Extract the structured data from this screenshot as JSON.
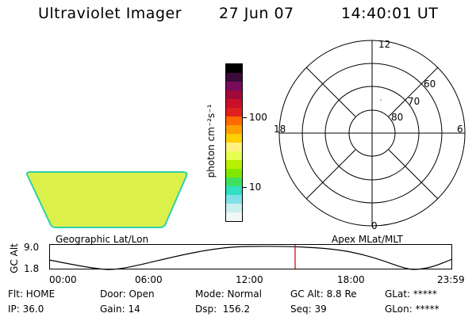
{
  "header": {
    "instrument": "Ultraviolet Imager",
    "date": "27 Jun 07",
    "time": "14:40:01 UT"
  },
  "colorbar": {
    "unit_label": "photon cm⁻²s⁻¹",
    "tick_100": "100",
    "tick_10": "10",
    "colors": [
      "#000000",
      "#3a0a3a",
      "#7a0a5a",
      "#a00a3a",
      "#c8102a",
      "#e02020",
      "#ff6a00",
      "#ffa000",
      "#ffd000",
      "#fff080",
      "#e6ff50",
      "#b8f000",
      "#80e800",
      "#40e060",
      "#30e0c0",
      "#80e0e8",
      "#c8f0f0",
      "#f0f8f8"
    ]
  },
  "geo_panel": {
    "label": "Geographic Lat/Lon",
    "fill_color": "#dcf04a"
  },
  "polar_plot": {
    "label": "Apex MLat/MLT",
    "mlt_top": "12",
    "mlt_left": "18",
    "mlt_right": "6",
    "mlt_bottom": "0",
    "lat_60": "60",
    "lat_70": "70",
    "lat_80": "80"
  },
  "altitude_plot": {
    "ylabel": "GC Alt",
    "y_top": "9.0",
    "y_bottom": "1.8",
    "x_ticks": [
      "00:00",
      "06:00",
      "12:00",
      "18:00",
      "23:59"
    ],
    "marker_color": "#cc0000"
  },
  "status": {
    "flt": "Flt: HOME",
    "ip": "IP: 36.0",
    "door": "Door: Open",
    "gain": "Gain: 14",
    "mode": "Mode: Normal",
    "dsp": "Dsp:  156.2",
    "gc_alt": "GC Alt: 8.8 Re",
    "seq": "Seq: 39",
    "glat": "GLat: *****",
    "glon": "GLon: *****"
  }
}
